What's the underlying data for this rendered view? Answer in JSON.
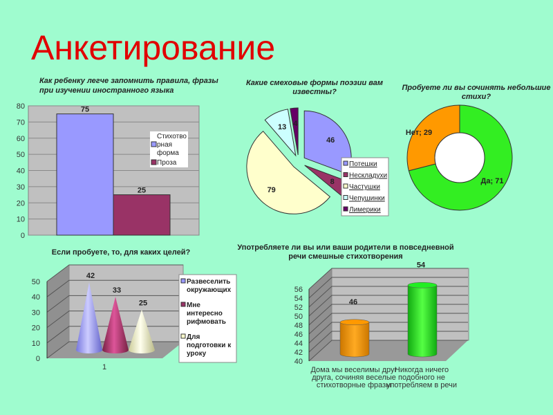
{
  "slide": {
    "title": "Анкетирование",
    "background": "#9ffccf",
    "title_color": "#e10000"
  },
  "chart_data": [
    {
      "type": "bar",
      "title_lines": [
        "Как ребенку легче запомнить правила, фразы",
        "при изучении иностранного языка"
      ],
      "series": [
        {
          "name_lines": [
            "Стихотво",
            "рная",
            "форма"
          ],
          "values": [
            75
          ],
          "color": "#9999ff"
        },
        {
          "name_lines": [
            "Проза"
          ],
          "values": [
            25
          ],
          "color": "#993366"
        }
      ],
      "ylim": [
        0,
        80
      ],
      "yticks": [
        "0",
        "10",
        "20",
        "30",
        "40",
        "50",
        "60",
        "70",
        "80"
      ],
      "grid": true,
      "legend": "right"
    },
    {
      "type": "pie",
      "exploded": true,
      "title_lines": [
        "Какие смеховые формы поэзии вам",
        "известны?"
      ],
      "categories": [
        "Потешки",
        "Нескладухи",
        "Частушки",
        "Чепушинки",
        "Лимерики"
      ],
      "values": [
        46,
        8,
        79,
        13,
        4
      ],
      "colors": [
        "#9999ff",
        "#993366",
        "#ffffcc",
        "#ccffff",
        "#660066"
      ],
      "legend": "bottom-right"
    },
    {
      "type": "pie",
      "donut": true,
      "title_lines": [
        "Пробуете ли вы сочинять небольшие",
        "стихи?"
      ],
      "categories": [
        "Да",
        "Нет"
      ],
      "values": [
        71,
        29
      ],
      "labels": [
        "Да; 71",
        "Нет; 29"
      ],
      "colors": [
        "#33ee22",
        "#ff9900"
      ]
    },
    {
      "type": "bar",
      "style": "3d-cone",
      "title_lines": [
        "Если пробуете, то, для каких целей?"
      ],
      "categories": [
        "1"
      ],
      "series": [
        {
          "name_lines": [
            "Развеселить",
            "окружающих"
          ],
          "values": [
            42
          ],
          "color": "#9999ff"
        },
        {
          "name_lines": [
            "Мне",
            "интересно",
            "рифмовать"
          ],
          "values": [
            33
          ],
          "color": "#993366"
        },
        {
          "name_lines": [
            "Для",
            "подготовки к",
            "уроку"
          ],
          "values": [
            25
          ],
          "color": "#ffffcc"
        }
      ],
      "ylim": [
        0,
        50
      ],
      "yticks": [
        "0",
        "10",
        "20",
        "30",
        "40",
        "50"
      ],
      "grid": true,
      "legend": "right"
    },
    {
      "type": "bar",
      "style": "3d-cylinder",
      "title_lines": [
        "Употребляете ли вы или ваши родители в повседневной",
        "речи смешные стихотворения"
      ],
      "categories": [
        [
          "Дома мы веселимы друг",
          "друга, сочиняя веселые",
          "стихотворные  фразы"
        ],
        [
          "Никогда ничего",
          "подобного не",
          "употребляем в речи"
        ]
      ],
      "values": [
        46,
        54
      ],
      "colors": [
        "#ff9900",
        "#22ee22"
      ],
      "ylim": [
        40,
        56
      ],
      "yticks": [
        "40",
        "42",
        "44",
        "46",
        "48",
        "50",
        "52",
        "54",
        "56"
      ],
      "grid": true
    }
  ]
}
